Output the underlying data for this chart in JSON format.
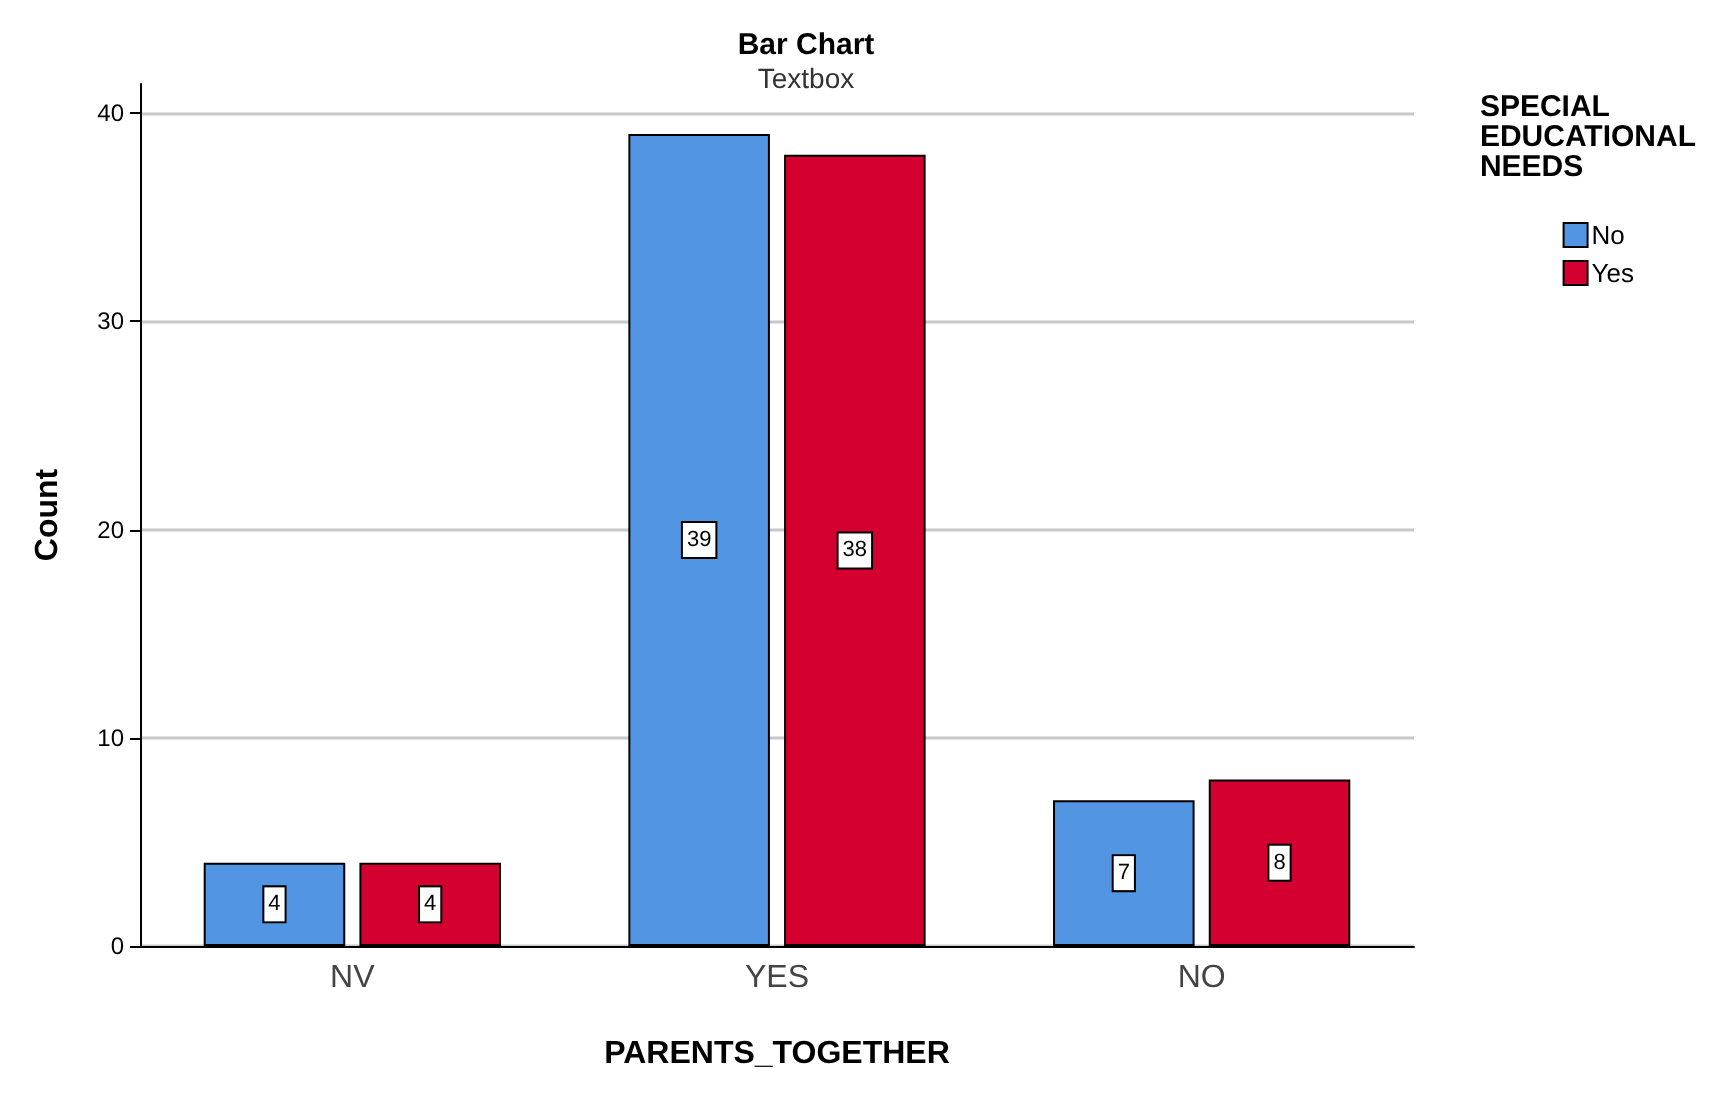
{
  "chart_data": {
    "type": "bar",
    "title": "Bar Chart",
    "subtitle": "Textbox",
    "xlabel": "PARENTS_TOGETHER",
    "ylabel": "Count",
    "legend_title": "SPECIAL\nEDUCATIONAL\nNEEDS",
    "categories": [
      "NV",
      "YES",
      "NO"
    ],
    "series": [
      {
        "name": "No",
        "color": "#5296e3",
        "values": [
          4,
          39,
          7
        ]
      },
      {
        "name": "Yes",
        "color": "#d4002f",
        "values": [
          4,
          38,
          8
        ]
      }
    ],
    "ylim": [
      0,
      41.4
    ],
    "yticks": [
      0,
      10,
      20,
      30,
      40
    ],
    "grid": "y",
    "legend": "top right",
    "data_labels": true
  }
}
